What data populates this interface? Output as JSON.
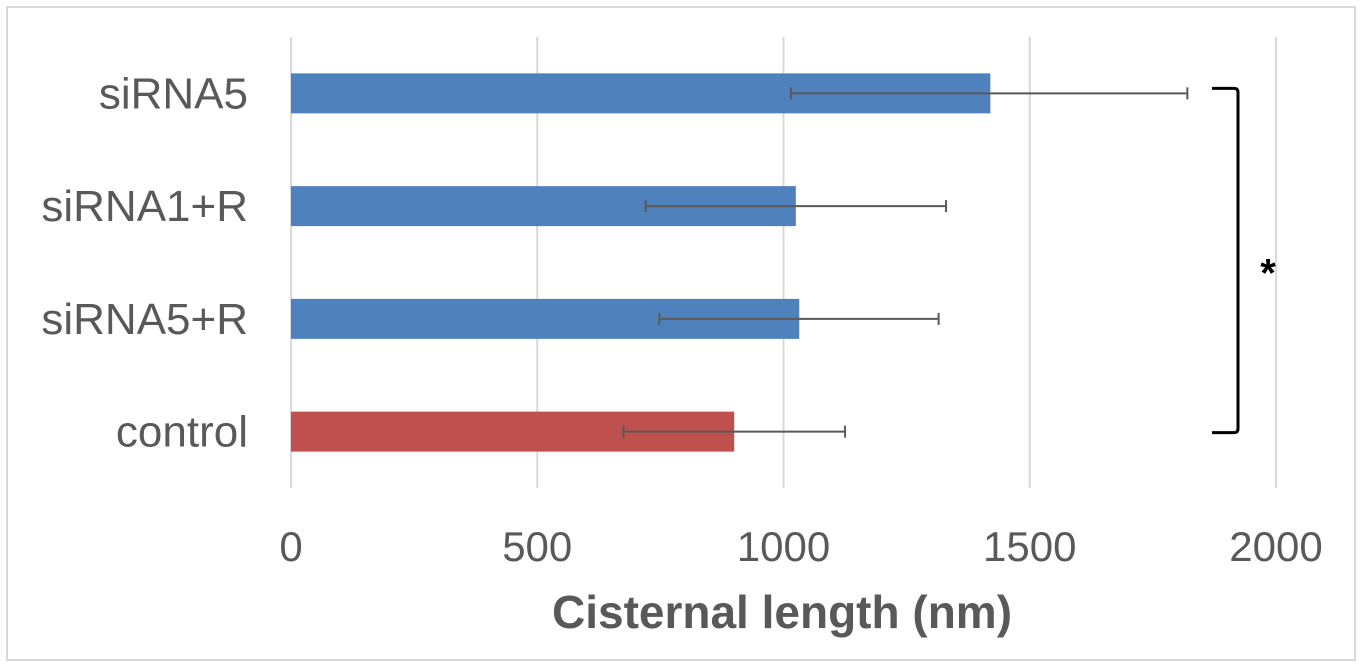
{
  "chart_data": {
    "type": "bar",
    "orientation": "horizontal",
    "categories": [
      "siRNA5",
      "siRNA1+R",
      "siRNA5+R",
      "control"
    ],
    "values": [
      1420,
      1025,
      1032,
      900
    ],
    "error_bars": [
      {
        "low": 1015,
        "high": 1820
      },
      {
        "low": 720,
        "high": 1330
      },
      {
        "low": 748,
        "high": 1315
      },
      {
        "low": 675,
        "high": 1125
      }
    ],
    "bar_colors": [
      "#4f81bd",
      "#4f81bd",
      "#4f81bd",
      "#c0504d"
    ],
    "xlabel": "Cisternal length (nm)",
    "ylabel": "",
    "xlim": [
      0,
      2000
    ],
    "x_ticks": [
      "0",
      "500",
      "1000",
      "1500",
      "2000"
    ],
    "grid": true,
    "legend": "none",
    "annotation": {
      "type": "significance-bracket",
      "text": "*",
      "spans": [
        "siRNA5",
        "control"
      ]
    }
  }
}
